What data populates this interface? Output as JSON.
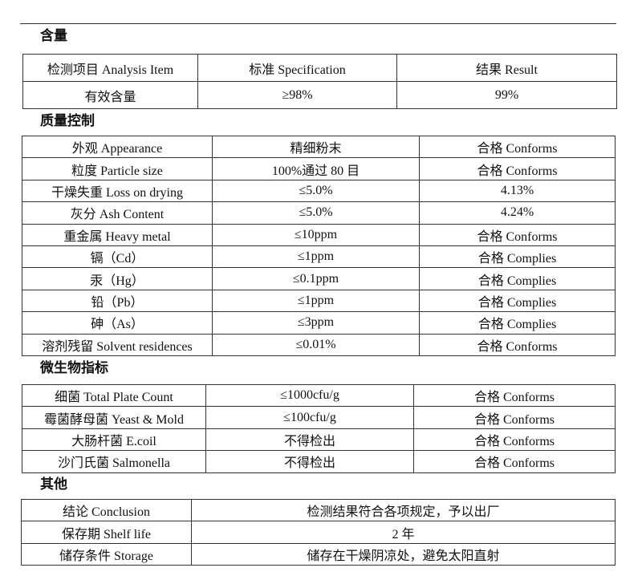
{
  "sections": [
    {
      "title": "含量",
      "rows": [
        [
          "检测项目  Analysis Item",
          "标准    Specification",
          "结果  Result"
        ],
        [
          "有效含量",
          "≥98%",
          "99%"
        ]
      ]
    },
    {
      "title": "质量控制",
      "rows": [
        [
          "外观  Appearance",
          "精细粉末",
          "合格 Conforms"
        ],
        [
          "粒度  Particle size",
          "100%通过 80 目",
          "合格 Conforms"
        ],
        [
          "干燥失重 Loss on drying",
          "≤5.0%",
          "4.13%"
        ],
        [
          "灰分 Ash Content",
          "≤5.0%",
          "4.24%"
        ],
        [
          "重金属  Heavy metal",
          "≤10ppm",
          "合格 Conforms"
        ],
        [
          "镉（Cd）",
          "≤1ppm",
          "合格 Complies"
        ],
        [
          "汞（Hg）",
          "≤0.1ppm",
          "合格 Complies"
        ],
        [
          "铅（Pb）",
          "≤1ppm",
          "合格 Complies"
        ],
        [
          "砷（As）",
          "≤3ppm",
          "合格 Complies"
        ],
        [
          "溶剂残留 Solvent residences",
          "≤0.01%",
          "合格 Conforms"
        ]
      ]
    },
    {
      "title": "微生物指标",
      "rows": [
        [
          "细菌  Total Plate Count",
          "≤1000cfu/g",
          "合格 Conforms"
        ],
        [
          "霉菌酵母菌  Yeast & Mold",
          "≤100cfu/g",
          "合格 Conforms"
        ],
        [
          "大肠杆菌    E.coil",
          "不得检出",
          "合格 Conforms"
        ],
        [
          "沙门氏菌    Salmonella",
          "不得检出",
          "合格 Conforms"
        ]
      ]
    },
    {
      "title": "其他",
      "rows": [
        [
          "结论  Conclusion",
          "检测结果符合各项规定，予以出厂"
        ],
        [
          "保存期  Shelf life",
          "2 年"
        ],
        [
          "储存条件 Storage",
          "储存在干燥阴凉处，避免太阳直射"
        ]
      ]
    }
  ]
}
